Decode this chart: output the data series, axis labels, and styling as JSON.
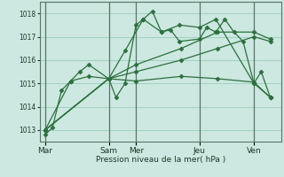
{
  "bg_color": "#cce8e0",
  "grid_color": "#99ccbb",
  "line_color": "#2d6e3e",
  "vline_color": "#557766",
  "ylim": [
    1012.5,
    1018.5
  ],
  "yticks": [
    1013,
    1014,
    1015,
    1016,
    1017,
    1018
  ],
  "xlabel": "Pression niveau de la mer( hPa )",
  "xtick_labels": [
    "Mar",
    "Sam",
    "Mer",
    "Jeu",
    "Ven"
  ],
  "xtick_positions": [
    0,
    3.5,
    5.0,
    8.5,
    11.5
  ],
  "vline_positions": [
    0,
    3.5,
    5.0,
    8.5,
    11.5
  ],
  "xlim": [
    -0.3,
    13.0
  ],
  "lines": [
    {
      "x": [
        0,
        0.4,
        0.9,
        1.4,
        1.9,
        2.4,
        3.5,
        3.9,
        4.4,
        5.0,
        5.4,
        5.9,
        6.4,
        6.9,
        7.4,
        8.5,
        8.9,
        9.4,
        9.9,
        10.4,
        10.9,
        11.5,
        11.9,
        12.4
      ],
      "y": [
        1012.8,
        1013.1,
        1014.7,
        1015.1,
        1015.5,
        1015.8,
        1015.2,
        1014.4,
        1015.0,
        1017.5,
        1017.75,
        1018.1,
        1017.2,
        1017.3,
        1016.8,
        1016.9,
        1017.4,
        1017.2,
        1017.75,
        1017.2,
        1016.8,
        1015.0,
        1015.5,
        1014.4
      ]
    },
    {
      "x": [
        0,
        1.4,
        2.4,
        3.5,
        4.4,
        5.4,
        6.4,
        7.4,
        8.5,
        9.4,
        11.5,
        12.4
      ],
      "y": [
        1013.0,
        1015.1,
        1015.3,
        1015.2,
        1016.4,
        1017.75,
        1017.2,
        1017.5,
        1017.4,
        1017.75,
        1015.0,
        1014.4
      ]
    },
    {
      "x": [
        0,
        3.5,
        5.0,
        7.5,
        9.5,
        11.5,
        12.4
      ],
      "y": [
        1013.0,
        1015.2,
        1015.8,
        1016.5,
        1017.2,
        1017.2,
        1016.9
      ]
    },
    {
      "x": [
        0,
        3.5,
        5.0,
        7.5,
        9.5,
        11.5,
        12.4
      ],
      "y": [
        1013.0,
        1015.2,
        1015.5,
        1016.0,
        1016.5,
        1017.0,
        1016.8
      ]
    },
    {
      "x": [
        0,
        3.5,
        5.0,
        7.5,
        9.5,
        11.5,
        12.4
      ],
      "y": [
        1013.0,
        1015.2,
        1015.1,
        1015.3,
        1015.2,
        1015.05,
        1014.4
      ]
    }
  ]
}
